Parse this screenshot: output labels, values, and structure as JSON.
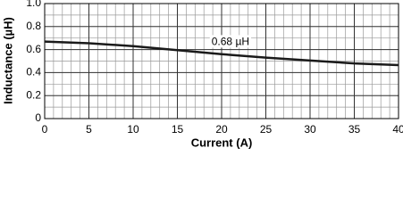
{
  "chart_data": {
    "type": "line",
    "x_label": "Current (A)",
    "y_label": "Inductance (µH)",
    "annotation": "0.68 µH",
    "x": [
      0,
      5,
      10,
      15,
      20,
      25,
      30,
      35,
      40
    ],
    "series": [
      {
        "color": "#1a1a1a",
        "values": [
          0.67,
          0.655,
          0.63,
          0.595,
          0.56,
          0.53,
          0.505,
          0.48,
          0.465
        ]
      }
    ],
    "xlim": [
      0,
      40
    ],
    "xticks": [
      0,
      5,
      10,
      15,
      20,
      25,
      30,
      35,
      40
    ],
    "ylim": [
      0,
      1
    ],
    "yticks": [
      0,
      0.2,
      0.4,
      0.6,
      0.8,
      {
        "value": 1,
        "label": "1.0"
      }
    ],
    "x_minor_step": 1,
    "y_minor_step": 0.1,
    "grid": true
  }
}
